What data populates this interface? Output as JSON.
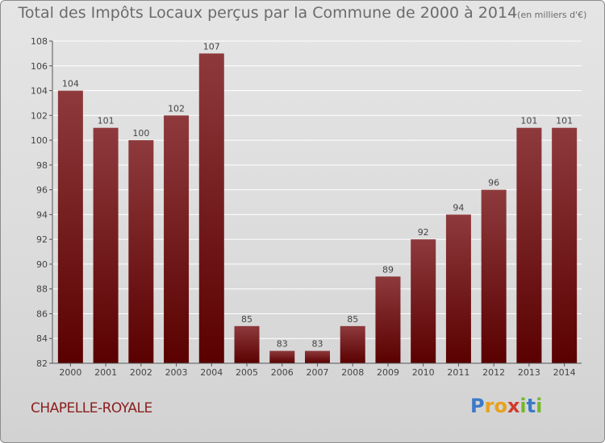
{
  "page": {
    "title": "Total des Impôts Locaux perçus par la Commune de 2000 à 2014",
    "unit": "(en milliers d'€)",
    "commune": "CHAPELLE-ROYALE",
    "brand": [
      "P",
      "r",
      "o",
      "x",
      "i",
      "t",
      "i"
    ]
  },
  "colors": {
    "bar_top": "#8e3a3d",
    "bar_bottom": "#5a0000",
    "title": "#6b6b6b",
    "commune": "#8b1e1e",
    "grid": "#ffffff"
  },
  "chart_data": {
    "type": "bar",
    "title": "Total des Impôts Locaux perçus par la Commune de 2000 à 2014",
    "xlabel": "",
    "ylabel": "",
    "ylim": [
      82,
      108
    ],
    "yticks": [
      82,
      84,
      86,
      88,
      90,
      92,
      94,
      96,
      98,
      100,
      102,
      104,
      106,
      108
    ],
    "grid": true,
    "categories": [
      "2000",
      "2001",
      "2002",
      "2003",
      "2004",
      "2005",
      "2006",
      "2007",
      "2008",
      "2009",
      "2010",
      "2011",
      "2012",
      "2013",
      "2014"
    ],
    "values": [
      104,
      101,
      100,
      102,
      107,
      85,
      83,
      83,
      85,
      89,
      92,
      94,
      96,
      101,
      101
    ]
  }
}
